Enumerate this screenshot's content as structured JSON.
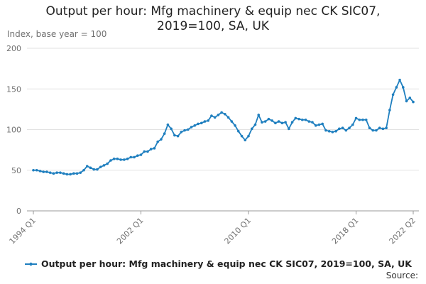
{
  "chart_data": {
    "type": "line",
    "title": "Output per hour: Mfg machinery & equip nec CK SIC07, 2019=100, SA, UK",
    "y_label": "Index, base year = 100",
    "source": "Source:",
    "categories": [
      "1994 Q1",
      null,
      null,
      null,
      null,
      null,
      null,
      null,
      null,
      null,
      null,
      null,
      null,
      null,
      null,
      null,
      null,
      null,
      null,
      null,
      null,
      null,
      null,
      null,
      null,
      null,
      null,
      null,
      null,
      null,
      null,
      null,
      "2002 Q1",
      null,
      null,
      null,
      null,
      null,
      null,
      null,
      null,
      null,
      null,
      null,
      null,
      null,
      null,
      null,
      null,
      null,
      null,
      null,
      null,
      null,
      null,
      null,
      null,
      null,
      null,
      null,
      null,
      null,
      null,
      null,
      "2010 Q1",
      null,
      null,
      null,
      null,
      null,
      null,
      null,
      null,
      null,
      null,
      null,
      null,
      null,
      null,
      null,
      null,
      null,
      null,
      null,
      null,
      null,
      null,
      null,
      null,
      null,
      null,
      null,
      null,
      null,
      null,
      null,
      "2018 Q1",
      null,
      null,
      null,
      null,
      null,
      null,
      null,
      null,
      null,
      null,
      null,
      null,
      null,
      null,
      null,
      null,
      "2022 Q2"
    ],
    "series": [
      {
        "name": "Output per hour: Mfg machinery & equip nec CK SIC07, 2019=100, SA, UK",
        "color": "#1f7fbf",
        "values": [
          50,
          50,
          49,
          48,
          48,
          47,
          46,
          47,
          47,
          46,
          45,
          45,
          46,
          46,
          47,
          50,
          55,
          53,
          51,
          51,
          54,
          56,
          58,
          62,
          64,
          64,
          63,
          63,
          64,
          66,
          66,
          68,
          69,
          73,
          73,
          76,
          77,
          85,
          88,
          95,
          106,
          101,
          93,
          92,
          97,
          99,
          100,
          103,
          105,
          107,
          108,
          110,
          111,
          117,
          115,
          118,
          121,
          119,
          115,
          110,
          105,
          98,
          92,
          87,
          92,
          101,
          106,
          118,
          109,
          110,
          113,
          111,
          108,
          110,
          108,
          109,
          101,
          109,
          114,
          113,
          112,
          112,
          110,
          109,
          105,
          106,
          107,
          99,
          98,
          97,
          98,
          101,
          102,
          99,
          102,
          106,
          114,
          112,
          112,
          112,
          102,
          99,
          99,
          102,
          101,
          102,
          124,
          143,
          152,
          161,
          152,
          135,
          139,
          134
        ]
      }
    ],
    "ylim": [
      0,
      200
    ],
    "yticks": [
      0,
      50,
      100,
      150,
      200
    ],
    "grid": true
  }
}
